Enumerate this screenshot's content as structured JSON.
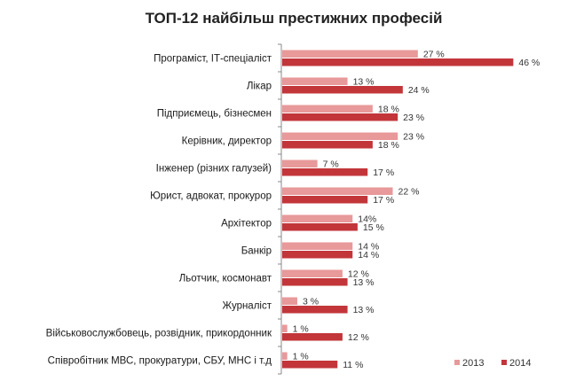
{
  "chart_data": {
    "type": "bar",
    "orientation": "horizontal",
    "title": "ТОП-12 найбільш престижних професій",
    "categories": [
      "Програміст, ІТ-спеціаліст",
      "Лікар",
      "Підприємець, бізнесмен",
      "Керівник, директор",
      "Інженер (різних галузей)",
      "Юрист, адвокат, прокурор",
      "Архітектор",
      "Банкір",
      "Льотчик, космонавт",
      "Журналіст",
      "Військовослужбовець, розвідник, прикордонник",
      "Співробітник МВС, прокуратури, СБУ, МНС і т.д"
    ],
    "series": [
      {
        "name": "2013",
        "color": "#e8999a",
        "values": [
          27,
          13,
          18,
          23,
          7,
          22,
          14,
          14,
          12,
          3,
          1,
          1
        ],
        "labels": [
          "27 %",
          "13 %",
          "18 %",
          "23 %",
          "7 %",
          "22 %",
          "14%",
          "14 %",
          "12 %",
          "3 %",
          "1 %",
          "1 %"
        ]
      },
      {
        "name": "2014",
        "color": "#c2363a",
        "values": [
          46,
          24,
          23,
          18,
          17,
          17,
          15,
          14,
          13,
          13,
          12,
          11
        ],
        "labels": [
          "46 %",
          "24 %",
          "23 %",
          "18 %",
          "17 %",
          "17 %",
          "15 %",
          "14 %",
          "13 %",
          "13 %",
          "12 %",
          "11 %"
        ]
      }
    ],
    "xlim": [
      0,
      50
    ],
    "grid": false,
    "legend": "bottom-right",
    "axis_color": "#888888"
  }
}
